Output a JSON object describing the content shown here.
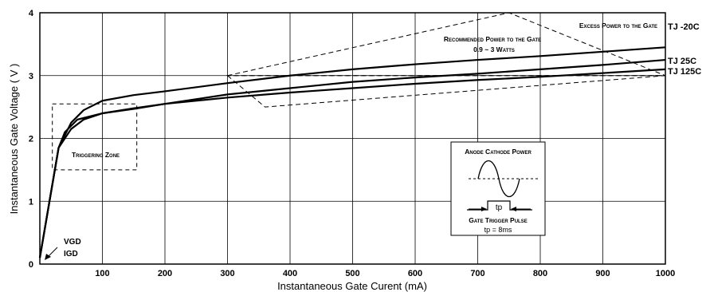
{
  "chart_data": {
    "type": "line",
    "title": "",
    "xlabel": "Instantaneous Gate Curent (mA)",
    "ylabel": "Instantaneous Gate Voltage ( V )",
    "xlim": [
      0,
      1000
    ],
    "ylim": [
      0,
      4
    ],
    "x_ticks": [
      100,
      200,
      300,
      400,
      500,
      600,
      700,
      800,
      900,
      1000
    ],
    "y_ticks": [
      0,
      1,
      2,
      3,
      4
    ],
    "grid": true,
    "series": [
      {
        "name": "TJ -20C",
        "x": [
          0,
          30,
          50,
          70,
          100,
          150,
          200,
          300,
          400,
          500,
          600,
          700,
          800,
          900,
          1000
        ],
        "y": [
          0.1,
          1.85,
          2.25,
          2.45,
          2.6,
          2.69,
          2.75,
          2.88,
          3.0,
          3.1,
          3.18,
          3.25,
          3.31,
          3.38,
          3.45
        ]
      },
      {
        "name": "TJ 25C",
        "x": [
          0,
          30,
          50,
          70,
          100,
          150,
          200,
          300,
          400,
          500,
          600,
          700,
          800,
          900,
          1000
        ],
        "y": [
          0.1,
          1.85,
          2.15,
          2.3,
          2.4,
          2.47,
          2.55,
          2.7,
          2.8,
          2.9,
          2.97,
          3.03,
          3.1,
          3.17,
          3.25
        ]
      },
      {
        "name": "TJ 125C",
        "x": [
          0,
          30,
          40,
          60,
          100,
          150,
          200,
          300,
          400,
          500,
          600,
          700,
          800,
          900,
          1000
        ],
        "y": [
          0.1,
          1.85,
          2.1,
          2.3,
          2.4,
          2.48,
          2.55,
          2.65,
          2.73,
          2.8,
          2.87,
          2.93,
          2.98,
          3.04,
          3.1
        ]
      }
    ],
    "annotations": {
      "excess_power": "Excess Power to the Gate",
      "recommended_power": "Recommended Power to the Gate",
      "recommended_range": "0.9 ~ 3 Watts",
      "triggering_zone": "Triggering Zone",
      "vgd": "VGD",
      "igd": "IGD",
      "inset_title": "Anode Cathode Power",
      "inset_tp": "tp",
      "inset_pulse": "Gate Trigger Pulse",
      "inset_tp_value": "tp = 8ms"
    },
    "regions": {
      "excess_power_polygon": [
        [
          300,
          3.0
        ],
        [
          750,
          4.0
        ],
        [
          1000,
          3.0
        ]
      ],
      "recommended_power_polygon": [
        [
          300,
          3.0
        ],
        [
          360,
          2.5
        ],
        [
          1000,
          3.0
        ]
      ],
      "triggering_zone_box": [
        [
          20,
          1.5
        ],
        [
          155,
          2.55
        ]
      ]
    }
  }
}
